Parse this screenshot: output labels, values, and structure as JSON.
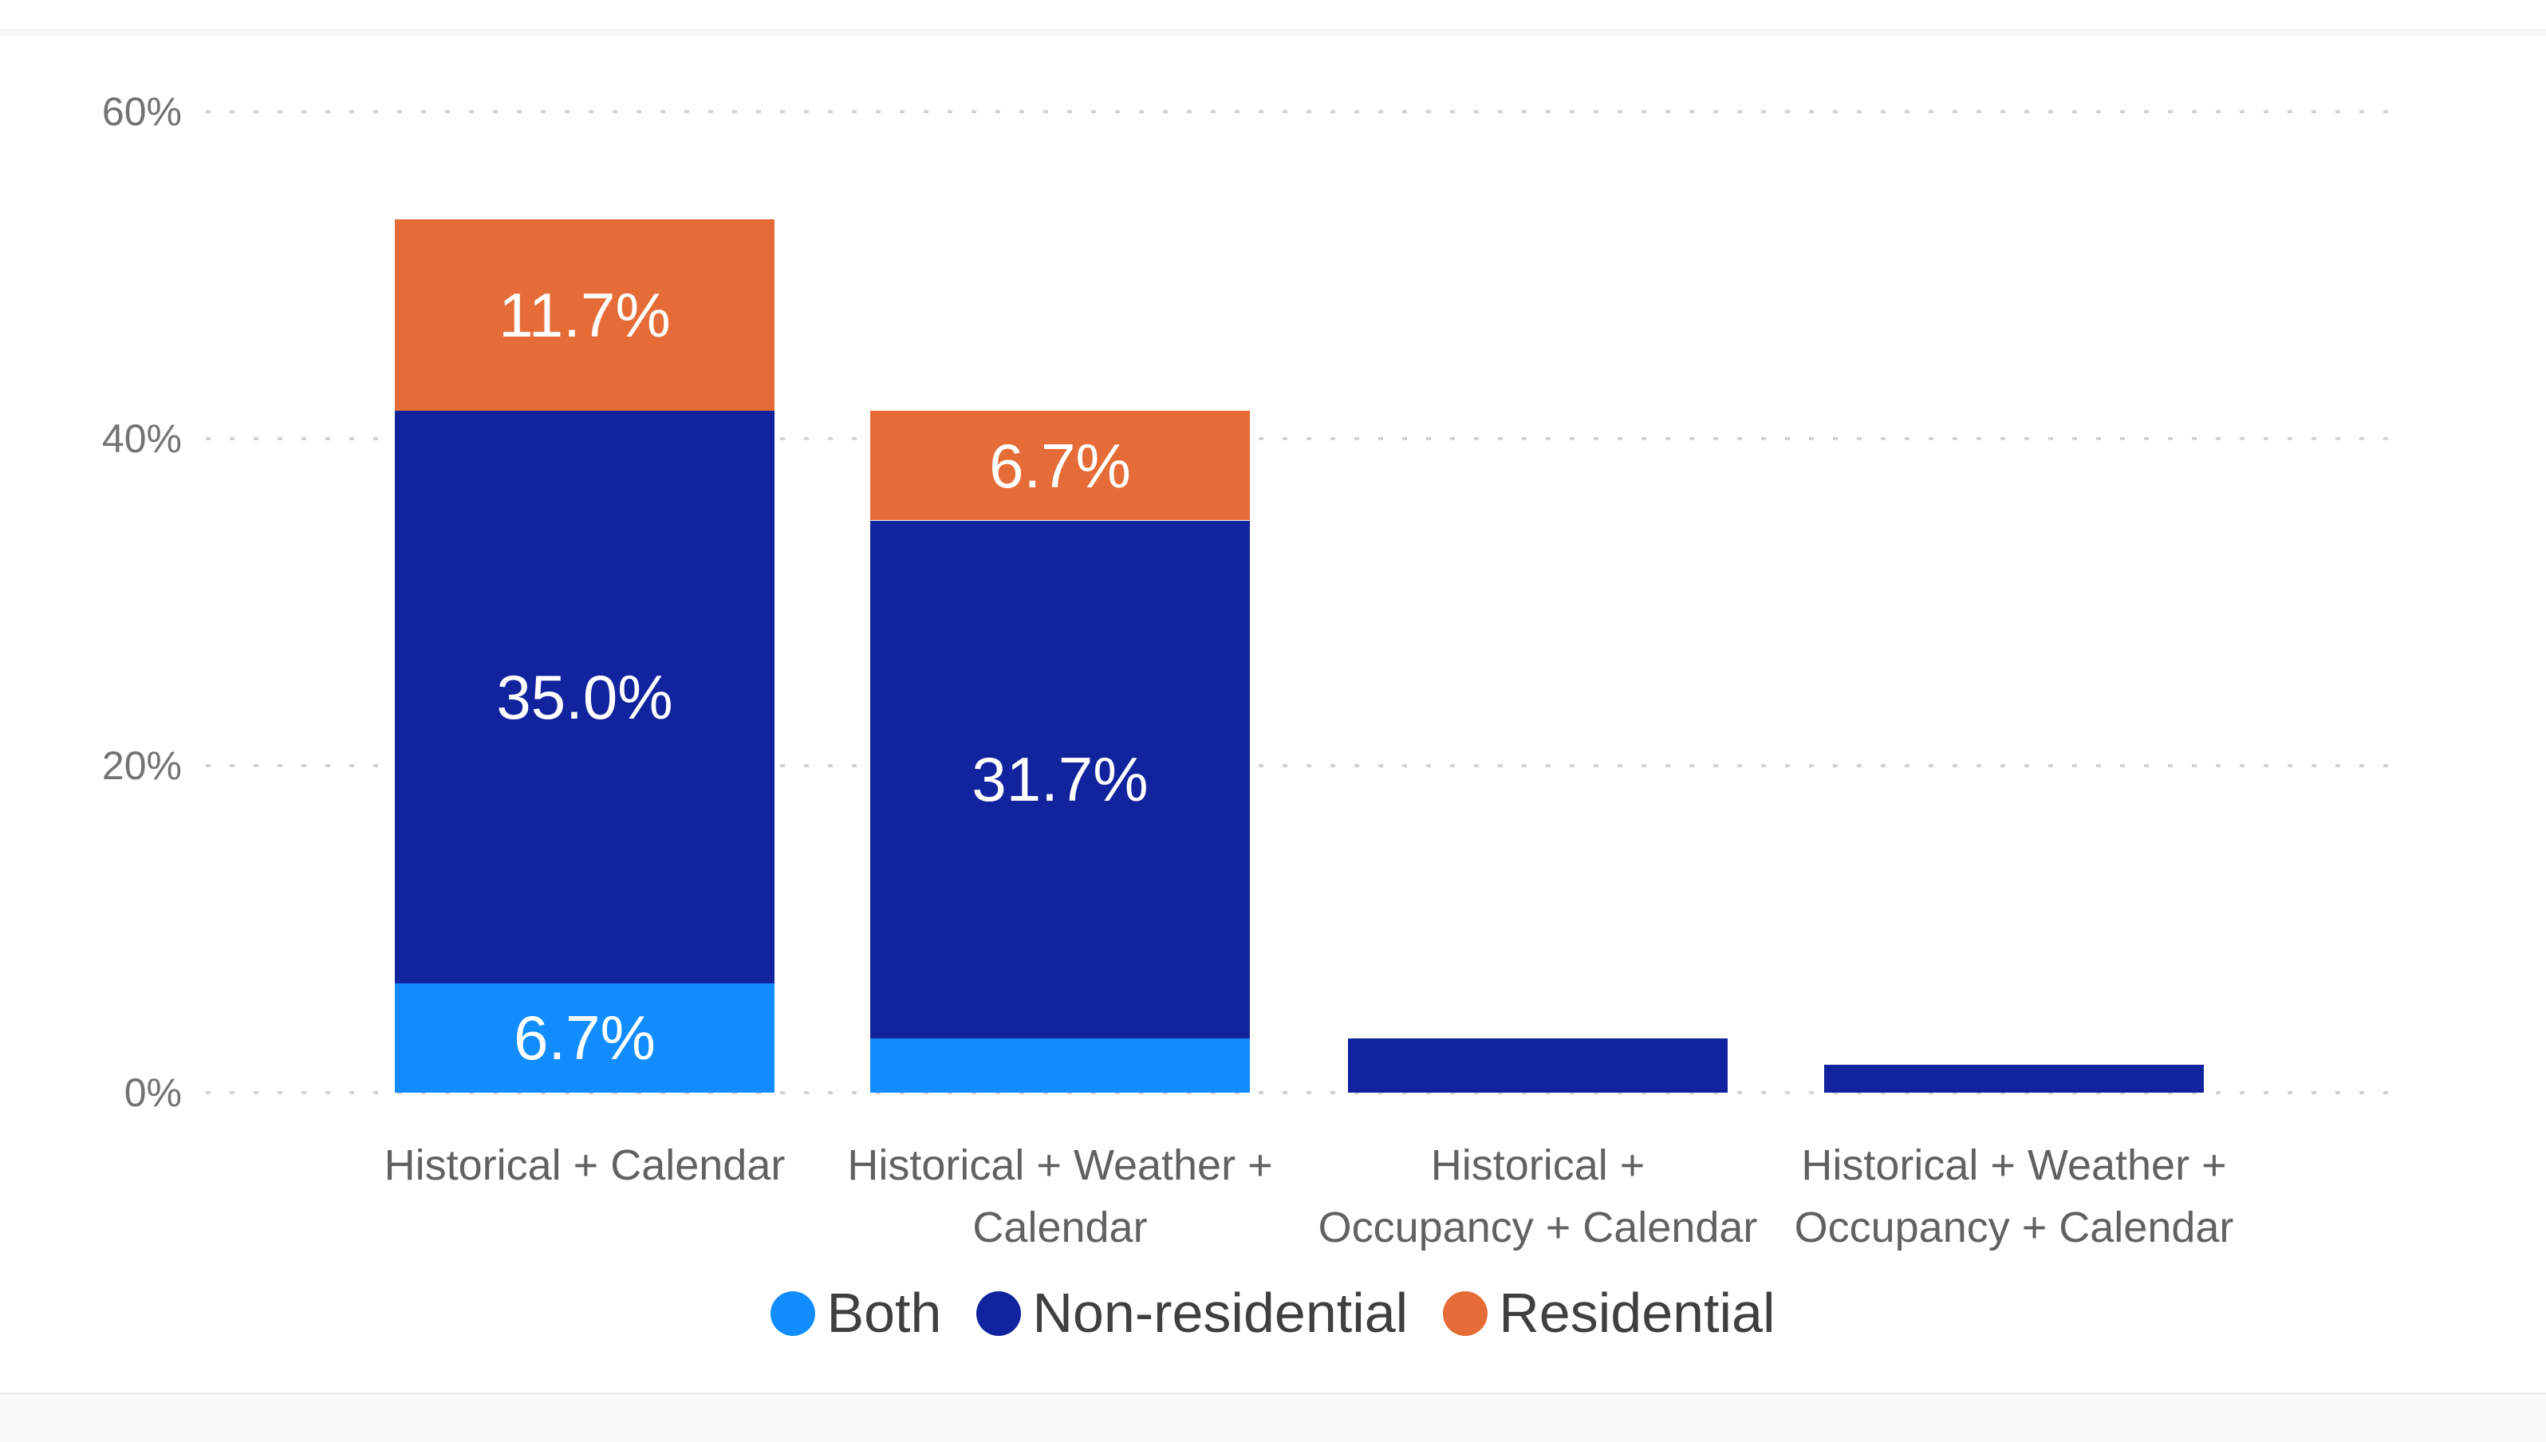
{
  "page": {
    "background_color": "#ffffff",
    "edge_band_color": "#fafafa"
  },
  "chart_data": {
    "type": "bar",
    "variant": "stacked-column",
    "title": "",
    "xlabel": "",
    "ylabel": "",
    "grid": "dotted horizontal",
    "legend_position": "bottom",
    "categories": [
      {
        "lines": [
          "Historical + Calendar"
        ]
      },
      {
        "lines": [
          "Historical + Weather +",
          "Calendar"
        ]
      },
      {
        "lines": [
          "Historical +",
          "Occupancy + Calendar"
        ]
      },
      {
        "lines": [
          "Historical + Weather +",
          "Occupancy + Calendar"
        ]
      }
    ],
    "series": [
      {
        "name": "Both",
        "color": "#118DFF",
        "values": [
          6.7,
          3.3,
          0,
          0
        ],
        "data_labels": [
          "6.7%",
          "",
          "",
          ""
        ]
      },
      {
        "name": "Non-residential",
        "color": "#12239E",
        "values": [
          35.0,
          31.7,
          3.3,
          1.7
        ],
        "data_labels": [
          "35.0%",
          "31.7%",
          "",
          ""
        ]
      },
      {
        "name": "Residential",
        "color": "#E66C37",
        "values": [
          11.7,
          6.7,
          0,
          0
        ],
        "data_labels": [
          "11.7%",
          "6.7%",
          "",
          ""
        ]
      }
    ],
    "totals": [
      53.4,
      41.7,
      3.3,
      1.7
    ],
    "y_axis": {
      "min": 0,
      "max": 60,
      "ticks": [
        {
          "label": "0%",
          "value": 0
        },
        {
          "label": "20%",
          "value": 20
        },
        {
          "label": "40%",
          "value": 40
        },
        {
          "label": "60%",
          "value": 60
        }
      ],
      "tick_color": "#737373",
      "grid_color": "#d2d2d2"
    },
    "legend": {
      "items": [
        {
          "label": "Both",
          "color": "#118DFF"
        },
        {
          "label": "Non-residential",
          "color": "#12239E"
        },
        {
          "label": "Residential",
          "color": "#E66C37"
        }
      ],
      "text_color": "#3f3f3f"
    },
    "value_label_color": "#ffffff",
    "category_label_color": "#616161"
  }
}
